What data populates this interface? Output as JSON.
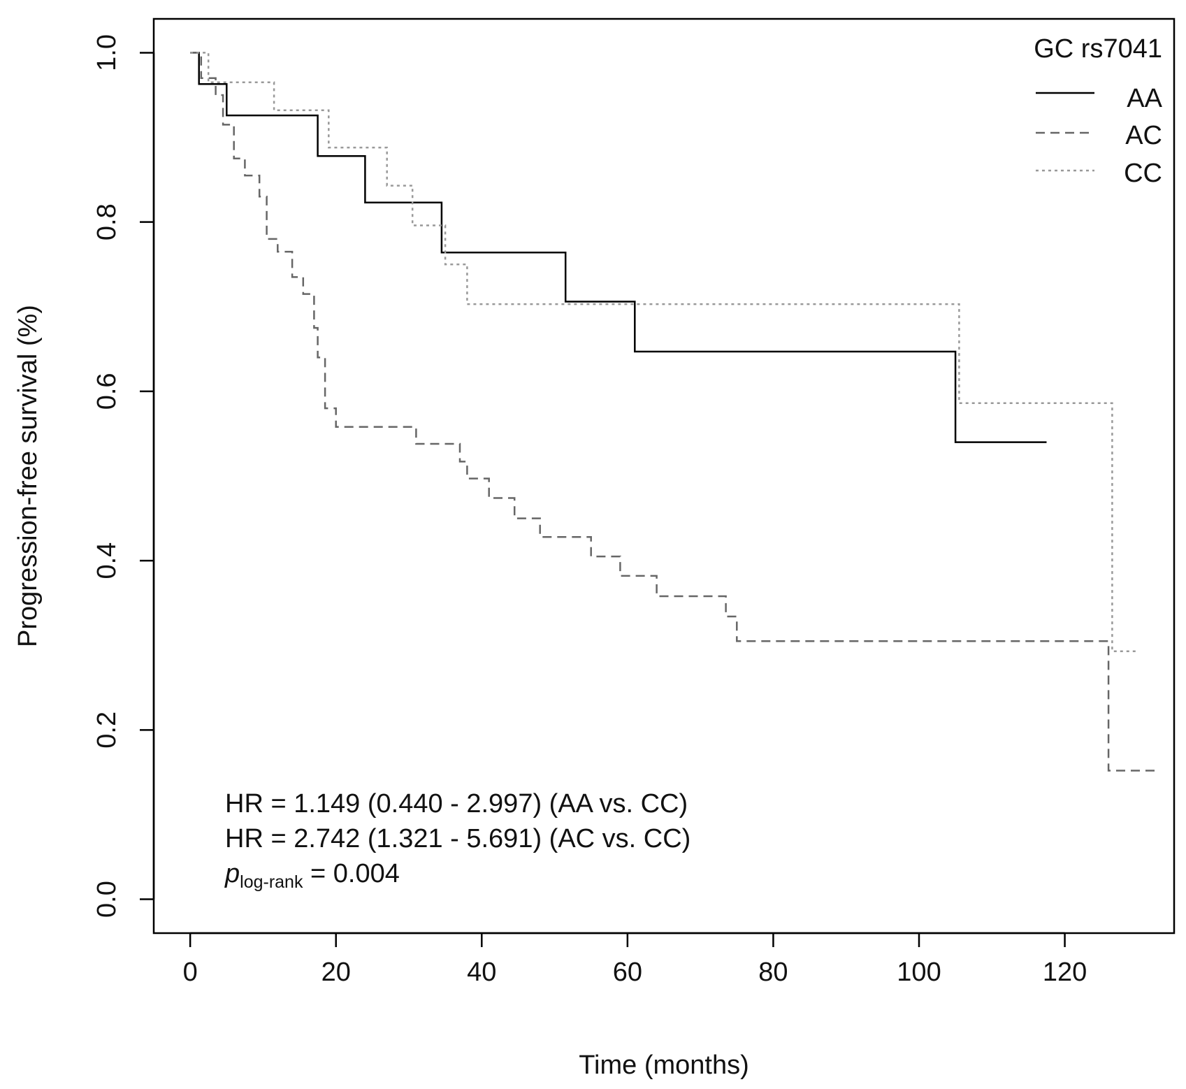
{
  "chart_data": {
    "type": "line",
    "xlabel": "Time (months)",
    "ylabel": "Progression-free survival (%)",
    "xlim": [
      -5,
      135
    ],
    "ylim": [
      -0.04,
      1.04
    ],
    "xticks": [
      "0",
      "20",
      "40",
      "60",
      "80",
      "100",
      "120"
    ],
    "yticks": [
      "0.0",
      "0.2",
      "0.4",
      "0.6",
      "0.8",
      "1.0"
    ],
    "legend": {
      "title": "GC rs7041",
      "position": "top-right",
      "entries": [
        "AA",
        "AC",
        "CC"
      ]
    },
    "series": [
      {
        "name": "AA",
        "style": "solid",
        "color": "#000000",
        "points": [
          [
            0,
            1.0
          ],
          [
            1.2,
            1.0
          ],
          [
            1.2,
            0.963
          ],
          [
            5,
            0.963
          ],
          [
            5,
            0.926
          ],
          [
            17.5,
            0.926
          ],
          [
            17.5,
            0.878
          ],
          [
            24,
            0.878
          ],
          [
            24,
            0.823
          ],
          [
            34.5,
            0.823
          ],
          [
            34.5,
            0.764
          ],
          [
            51.5,
            0.764
          ],
          [
            51.5,
            0.706
          ],
          [
            61,
            0.706
          ],
          [
            61,
            0.647
          ],
          [
            105,
            0.647
          ],
          [
            105,
            0.54
          ],
          [
            117.5,
            0.54
          ]
        ]
      },
      {
        "name": "AC",
        "style": "dashed",
        "color": "#666666",
        "points": [
          [
            0,
            1.0
          ],
          [
            1.5,
            1.0
          ],
          [
            1.5,
            0.97
          ],
          [
            3.5,
            0.97
          ],
          [
            3.5,
            0.95
          ],
          [
            4.5,
            0.95
          ],
          [
            4.5,
            0.915
          ],
          [
            6,
            0.915
          ],
          [
            6,
            0.875
          ],
          [
            7.5,
            0.875
          ],
          [
            7.5,
            0.855
          ],
          [
            9.5,
            0.855
          ],
          [
            9.5,
            0.83
          ],
          [
            10.5,
            0.83
          ],
          [
            10.5,
            0.78
          ],
          [
            12,
            0.78
          ],
          [
            12,
            0.765
          ],
          [
            14,
            0.765
          ],
          [
            14,
            0.735
          ],
          [
            15.5,
            0.735
          ],
          [
            15.5,
            0.715
          ],
          [
            17,
            0.715
          ],
          [
            17,
            0.675
          ],
          [
            17.5,
            0.675
          ],
          [
            17.5,
            0.64
          ],
          [
            18.5,
            0.64
          ],
          [
            18.5,
            0.58
          ],
          [
            20,
            0.58
          ],
          [
            20,
            0.558
          ],
          [
            31,
            0.558
          ],
          [
            31,
            0.538
          ],
          [
            37,
            0.538
          ],
          [
            37,
            0.517
          ],
          [
            38,
            0.517
          ],
          [
            38,
            0.497
          ],
          [
            41,
            0.497
          ],
          [
            41,
            0.474
          ],
          [
            44.5,
            0.474
          ],
          [
            44.5,
            0.45
          ],
          [
            48,
            0.45
          ],
          [
            48,
            0.428
          ],
          [
            55,
            0.428
          ],
          [
            55,
            0.405
          ],
          [
            59,
            0.405
          ],
          [
            59,
            0.382
          ],
          [
            64,
            0.382
          ],
          [
            64,
            0.358
          ],
          [
            73.5,
            0.358
          ],
          [
            73.5,
            0.334
          ],
          [
            75,
            0.334
          ],
          [
            75,
            0.305
          ],
          [
            126,
            0.305
          ],
          [
            126,
            0.152
          ],
          [
            133,
            0.152
          ]
        ]
      },
      {
        "name": "CC",
        "style": "dotted",
        "color": "#999999",
        "points": [
          [
            0,
            1.0
          ],
          [
            2.5,
            1.0
          ],
          [
            2.5,
            0.965
          ],
          [
            11.5,
            0.965
          ],
          [
            11.5,
            0.932
          ],
          [
            19,
            0.932
          ],
          [
            19,
            0.888
          ],
          [
            27,
            0.888
          ],
          [
            27,
            0.843
          ],
          [
            30.5,
            0.843
          ],
          [
            30.5,
            0.796
          ],
          [
            35,
            0.796
          ],
          [
            35,
            0.75
          ],
          [
            38,
            0.75
          ],
          [
            38,
            0.703
          ],
          [
            105.5,
            0.703
          ],
          [
            105.5,
            0.586
          ],
          [
            126.5,
            0.586
          ],
          [
            126.5,
            0.293
          ],
          [
            130,
            0.293
          ]
        ]
      }
    ],
    "annotations": {
      "hr_aa": "HR = 1.149 (0.440 - 2.997) (AA vs. CC)",
      "hr_ac": "HR = 2.742 (1.321 - 5.691) (AC vs. CC)",
      "p_main": "p",
      "p_sub": "log-rank",
      "p_value": " = 0.004"
    }
  }
}
